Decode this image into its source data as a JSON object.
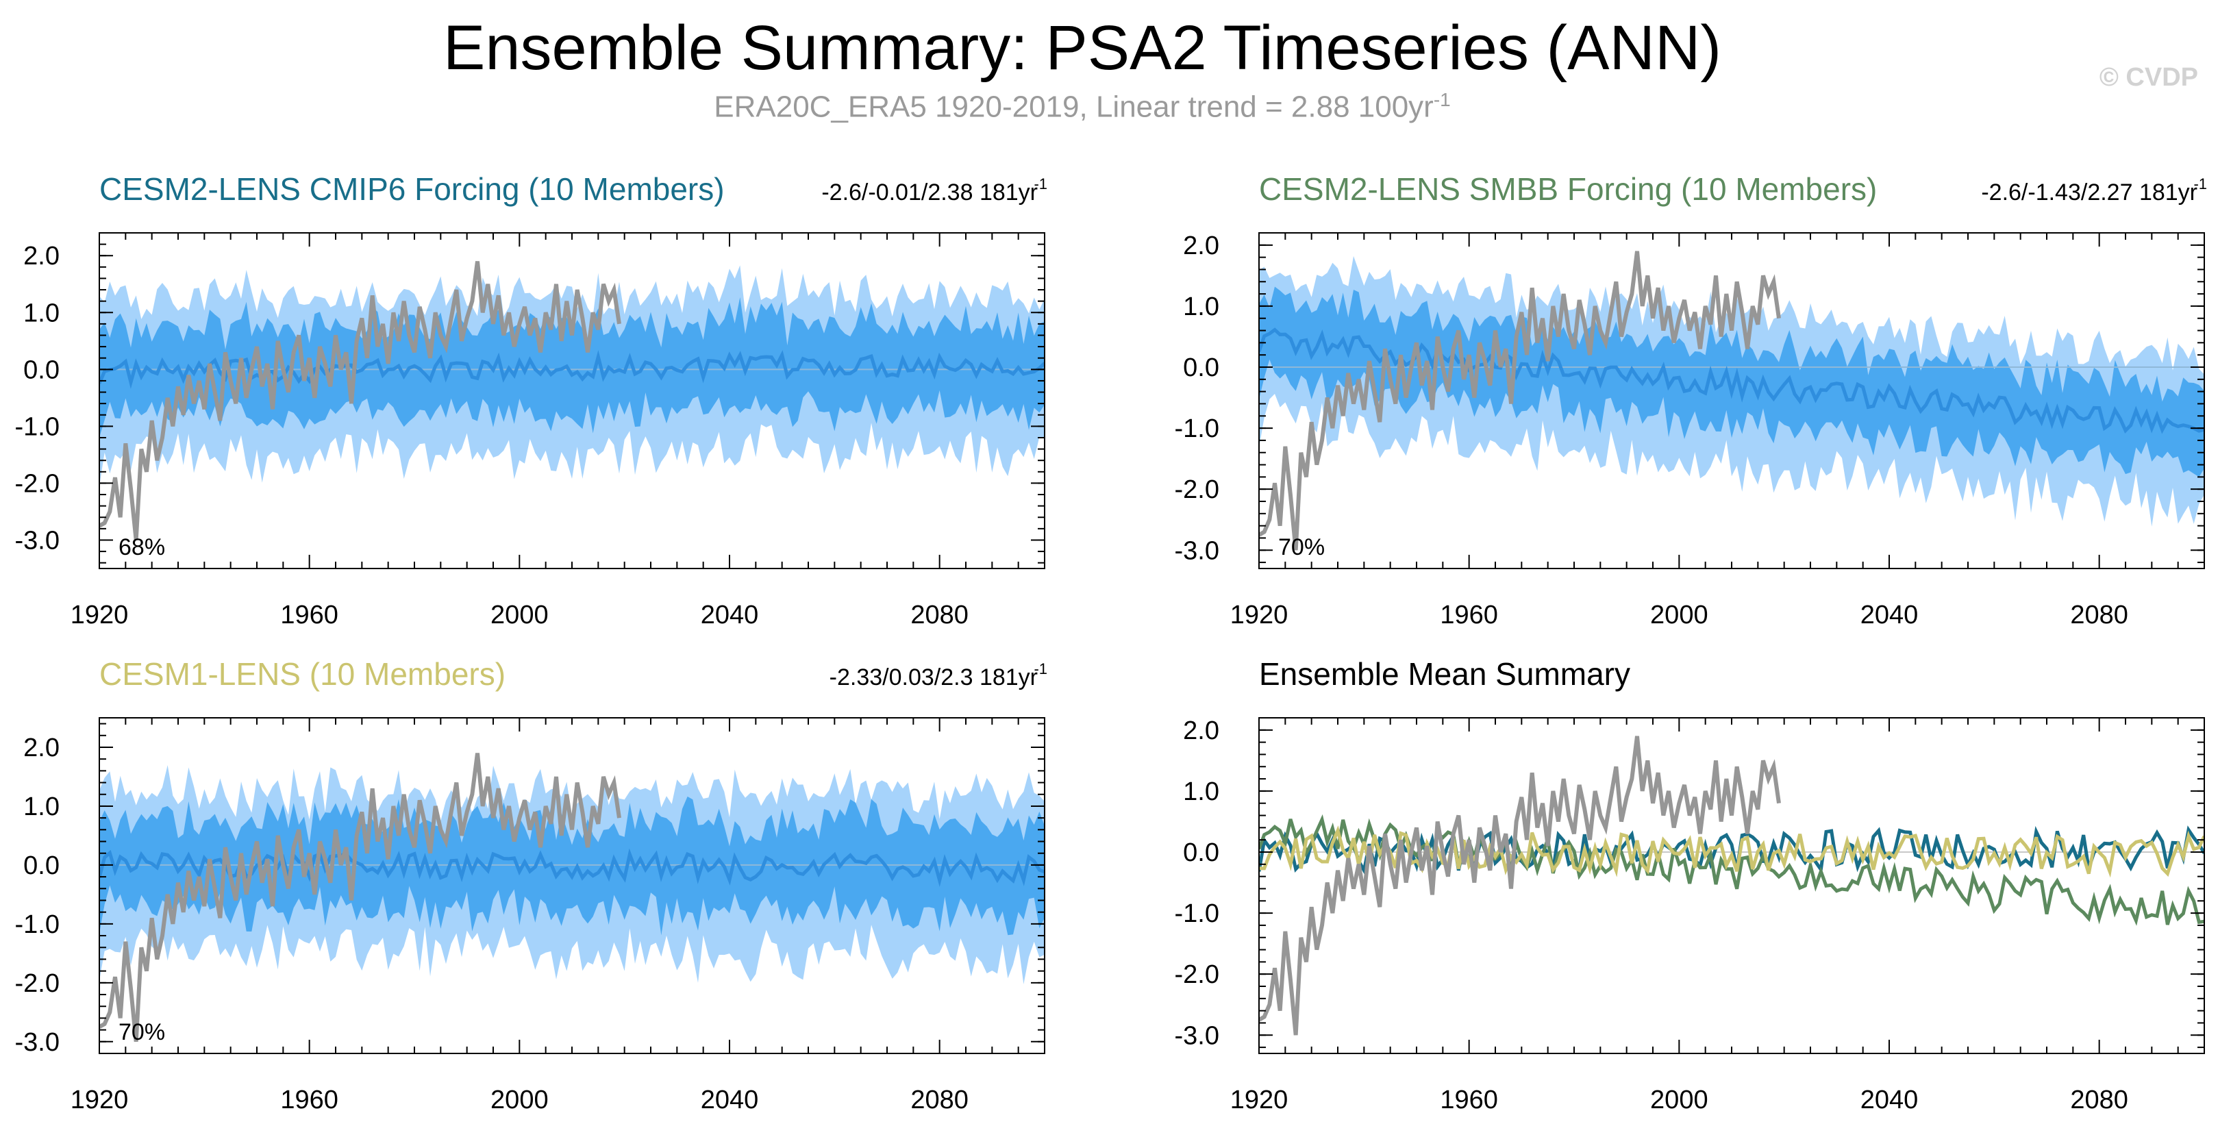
{
  "header": {
    "title": "Ensemble Summary: PSA2 Timeseries (ANN)",
    "subtitle": "ERA20C_ERA5 1920-2019, Linear trend = 2.88 100yr",
    "subtitle_exp": "-1",
    "watermark": "© CVDP"
  },
  "chart_data": [
    {
      "type": "area",
      "id": "cesm2-cmip6",
      "title": "CESM2-LENS CMIP6 Forcing (10 Members)",
      "title_color": "#186e8a",
      "stats": "-2.6/-0.01/2.38 181yr",
      "stats_exp": "-1",
      "percent_label": "68%",
      "xlim": [
        1920,
        2100
      ],
      "ylim": [
        -3.5,
        2.4
      ],
      "xticks": [
        1920,
        1960,
        2000,
        2040,
        2080
      ],
      "yticks": [
        -3.0,
        -2.0,
        -1.0,
        0.0,
        1.0,
        2.0
      ],
      "ytick_labels": [
        "-3.0",
        "-2.0",
        "-1.0",
        "0.0",
        "1.0",
        "2.0"
      ],
      "trend_start": -0.05,
      "trend_end": 0.1,
      "outer_spread": 1.55,
      "inner_spread": 0.85,
      "noise_amp": 0.2,
      "obs_scale": 1.0,
      "series": [
        {
          "name": "Ensemble 2.5-97.5% range",
          "color": "#a6d3fb"
        },
        {
          "name": "Ensemble 10-90% range",
          "color": "#4aa8f0"
        },
        {
          "name": "Ensemble mean",
          "color": "#2f8ede"
        },
        {
          "name": "ERA20C_ERA5 observations",
          "color": "#969696"
        }
      ]
    },
    {
      "type": "area",
      "id": "cesm2-smbb",
      "title": "CESM2-LENS SMBB Forcing (10 Members)",
      "title_color": "#5c8a5e",
      "stats": "-2.6/-1.43/2.27 181yr",
      "stats_exp": "-1",
      "percent_label": "70%",
      "xlim": [
        1920,
        2100
      ],
      "ylim": [
        -3.3,
        2.2
      ],
      "xticks": [
        1920,
        1960,
        2000,
        2040,
        2080
      ],
      "yticks": [
        -3.0,
        -2.0,
        -1.0,
        0.0,
        1.0,
        2.0
      ],
      "ytick_labels": [
        "-3.0",
        "-2.0",
        "-1.0",
        "0.0",
        "1.0",
        "2.0"
      ],
      "trend_start": 0.45,
      "trend_end": -1.0,
      "outer_spread": 1.35,
      "inner_spread": 0.7,
      "noise_amp": 0.2,
      "obs_scale": 1.0,
      "series": [
        {
          "name": "Ensemble 2.5-97.5% range",
          "color": "#a6d3fb"
        },
        {
          "name": "Ensemble 10-90% range",
          "color": "#4aa8f0"
        },
        {
          "name": "Ensemble mean",
          "color": "#2f8ede"
        },
        {
          "name": "ERA20C_ERA5 observations",
          "color": "#969696"
        }
      ]
    },
    {
      "type": "area",
      "id": "cesm1",
      "title": "CESM1-LENS (10 Members)",
      "title_color": "#cbc46f",
      "stats": "-2.33/0.03/2.3 181yr",
      "stats_exp": "-1",
      "percent_label": "70%",
      "xlim": [
        1920,
        2100
      ],
      "ylim": [
        -3.2,
        2.5
      ],
      "xticks": [
        1920,
        1960,
        2000,
        2040,
        2080
      ],
      "yticks": [
        -3.0,
        -2.0,
        -1.0,
        0.0,
        1.0,
        2.0
      ],
      "ytick_labels": [
        "-3.0",
        "-2.0",
        "-1.0",
        "0.0",
        "1.0",
        "2.0"
      ],
      "trend_start": 0.0,
      "trend_end": -0.05,
      "outer_spread": 1.5,
      "inner_spread": 0.85,
      "noise_amp": 0.22,
      "obs_scale": 1.0,
      "series": [
        {
          "name": "Ensemble 2.5-97.5% range",
          "color": "#a6d3fb"
        },
        {
          "name": "Ensemble 10-90% range",
          "color": "#4aa8f0"
        },
        {
          "name": "Ensemble mean",
          "color": "#2f8ede"
        },
        {
          "name": "ERA20C_ERA5 observations",
          "color": "#969696"
        }
      ]
    },
    {
      "type": "line",
      "id": "ensemble-mean",
      "title": "Ensemble Mean Summary",
      "title_color": "#000000",
      "stats": "",
      "xlim": [
        1920,
        2100
      ],
      "ylim": [
        -3.3,
        2.2
      ],
      "xticks": [
        1920,
        1960,
        2000,
        2040,
        2080
      ],
      "yticks": [
        -3.0,
        -2.0,
        -1.0,
        0.0,
        1.0,
        2.0
      ],
      "ytick_labels": [
        "-3.0",
        "-2.0",
        "-1.0",
        "0.0",
        "1.0",
        "2.0"
      ],
      "series": [
        {
          "name": "CESM2-LENS CMIP6 Forcing mean",
          "color": "#186e8a"
        },
        {
          "name": "CESM2-LENS SMBB Forcing mean",
          "color": "#5c8a5e"
        },
        {
          "name": "CESM1-LENS mean",
          "color": "#cbc46f"
        },
        {
          "name": "ERA20C_ERA5 observations",
          "color": "#969696"
        }
      ]
    }
  ],
  "observations": {
    "name": "ERA20C_ERA5",
    "years": [
      1920,
      2019
    ],
    "values": [
      -2.75,
      -2.7,
      -2.5,
      -1.9,
      -2.6,
      -1.3,
      -2.1,
      -3.0,
      -1.4,
      -1.8,
      -0.9,
      -1.6,
      -1.2,
      -0.5,
      -1.0,
      -0.3,
      -0.8,
      -0.1,
      -0.6,
      -0.2,
      -0.7,
      0.1,
      -0.4,
      -0.9,
      0.3,
      -0.2,
      -0.6,
      0.2,
      -0.5,
      0.0,
      0.4,
      -0.3,
      0.1,
      -0.7,
      0.5,
      0.0,
      -0.4,
      0.3,
      0.6,
      -0.2,
      0.2,
      -0.5,
      0.4,
      0.1,
      -0.3,
      0.6,
      0.0,
      0.3,
      -0.6,
      0.5,
      0.9,
      0.2,
      1.3,
      0.4,
      0.8,
      0.1,
      1.0,
      0.5,
      1.2,
      0.6,
      0.3,
      1.1,
      0.7,
      0.2,
      1.0,
      0.6,
      0.4,
      0.9,
      1.4,
      0.5,
      0.9,
      1.2,
      1.9,
      1.0,
      1.5,
      0.8,
      1.3,
      0.6,
      1.0,
      0.4,
      0.8,
      1.1,
      0.6,
      0.9,
      0.3,
      1.0,
      0.7,
      1.5,
      0.5,
      1.2,
      0.6,
      1.4,
      0.9,
      0.3,
      1.0,
      0.7,
      1.5,
      1.2,
      1.4,
      0.8
    ]
  }
}
